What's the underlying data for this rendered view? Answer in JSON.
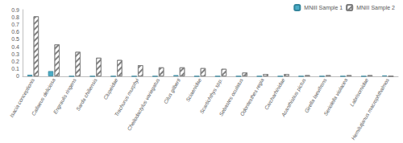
{
  "chart_data": {
    "type": "bar",
    "categories": [
      "Isacia conceptionis",
      "Callaeus deliciosa",
      "Engraulis ringens",
      "Sarda chiliensis",
      "Clupeidae",
      "Trachurus murphyi",
      "Cheilodactylus variegatus",
      "Cilus gilberti",
      "Sciaenidae",
      "Scartichthys spp.",
      "Sebastes oculatus",
      "Odontesthes regia",
      "Carcharhinidae",
      "Acanthistius pictus",
      "Girella laevifrons",
      "Seriolella violacea",
      "Labrisomidae",
      "Hemilutjanus macrophthalmos"
    ],
    "series": [
      {
        "name": "MNiII Sample 1",
        "color": "#4bacc6",
        "values": [
          0.02,
          0.07,
          0,
          0,
          0,
          0,
          0,
          0.015,
          0,
          0,
          0,
          0,
          0,
          0,
          0,
          0,
          0,
          0.01
        ]
      },
      {
        "name": "MNiII Sample 2",
        "color": "#7f7f7f",
        "values": [
          0.81,
          0.43,
          0.33,
          0.25,
          0.22,
          0.15,
          0.12,
          0.12,
          0.11,
          0.1,
          0.05,
          0.03,
          0.03,
          0.015,
          0.015,
          0.015,
          0.015,
          0
        ]
      }
    ],
    "ylim": [
      0,
      0.9
    ],
    "yticks": [
      0,
      0.1,
      0.2,
      0.3,
      0.4,
      0.5,
      0.6,
      0.7,
      0.8,
      0.9
    ],
    "grid": false,
    "legend": "top-right"
  }
}
